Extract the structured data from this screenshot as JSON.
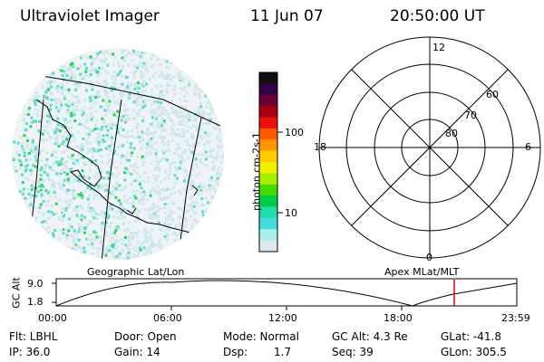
{
  "header": {
    "instrument": "Ultraviolet Imager",
    "date": "11 Jun 07",
    "time": "20:50:00 UT"
  },
  "colorbar": {
    "label": "photon cm-2s-1",
    "ticks": [
      "100",
      "10"
    ],
    "colors": [
      "#101010",
      "#30004a",
      "#6a0038",
      "#aa0010",
      "#ee1010",
      "#ff5a00",
      "#ff9600",
      "#ffcc00",
      "#f0f000",
      "#a8ee00",
      "#44dd00",
      "#00cc44",
      "#22ddaa",
      "#44dddd",
      "#aaeeee",
      "#dde8ee"
    ]
  },
  "left_panel": {
    "caption": "Geographic Lat/Lon",
    "colors": {
      "dots_light": "#cfe6ec",
      "dots_cyan": "#5fd9c8",
      "dots_green": "#2ad35a"
    }
  },
  "polar_plot": {
    "caption": "Apex MLat/MLT",
    "mlt_labels": {
      "top": "12",
      "left": "18",
      "right": "6",
      "bottom": "0"
    },
    "lat_labels": [
      "60",
      "70",
      "80"
    ]
  },
  "altitude_plot": {
    "ylabel": "GC Alt",
    "yticks": [
      "9.0",
      "1.8"
    ],
    "xticks": [
      "00:00",
      "06:00",
      "12:00",
      "18:00",
      "23:59"
    ],
    "marker_color": "#dd0000"
  },
  "info": {
    "flt": "Flt: LBHL",
    "ip": "IP: 36.0",
    "door": "Door: Open",
    "gain": "Gain: 14",
    "mode": "Mode: Normal",
    "dsp_label": "Dsp:",
    "dsp_value": "1.7",
    "gc_alt": "GC Alt: 4.3 Re",
    "seq": "Seq: 39",
    "glat": "GLat: -41.8",
    "glon": "GLon: 305.5"
  }
}
